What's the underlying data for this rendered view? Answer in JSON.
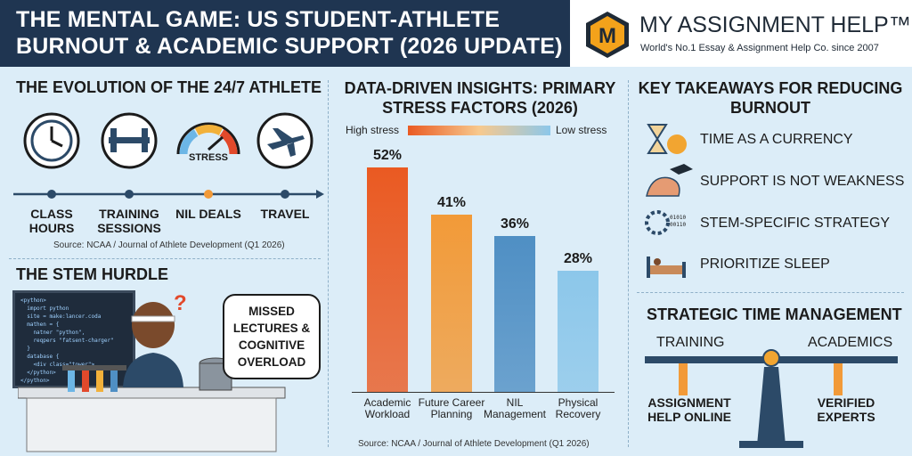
{
  "header": {
    "title_lines": [
      "THE MENTAL GAME: US STUDENT-ATHLETE",
      "BURNOUT & ACADEMIC SUPPORT (2026 UPDATE)"
    ],
    "brand_logo": "M",
    "brand_name": "MY ASSIGNMENT HELP™",
    "brand_tagline": "World's No.1 Essay & Assignment Help Co. since 2007"
  },
  "evolution": {
    "title": "THE EVOLUTION OF THE 24/7 ATHLETE",
    "gauge_label": "STRESS",
    "items": [
      "CLASS HOURS",
      "TRAINING SESSIONS",
      "NIL DEALS",
      "TRAVEL"
    ],
    "source": "Source: NCAA / Journal of Athlete Development (Q1 2026)"
  },
  "stem": {
    "title": "THE STEM HURDLE",
    "bubble": "MISSED LECTURES & COGNITIVE OVERLOAD",
    "code_lines": [
      "<python>",
      "  import python",
      "  site = make:lancer.coda",
      "  mathen = {",
      "    natner \"python\",",
      "    reqpers \"fatsent-charger\"",
      "  }",
      "  database {",
      "    <div class=\"tower\">",
      "  </python>",
      "</python>"
    ]
  },
  "chart_data": {
    "type": "bar",
    "title": "DATA-DRIVEN INSIGHTS: PRIMARY STRESS FACTORS (2026)",
    "legend_labels": [
      "High stress",
      "Low stress"
    ],
    "categories": [
      "Academic Workload",
      "Future Career Planning",
      "NIL Management",
      "Physical Recovery"
    ],
    "values": [
      52,
      41,
      36,
      28
    ],
    "value_labels": [
      "52%",
      "41%",
      "36%",
      "28%"
    ],
    "colors": [
      "#ea5a22",
      "#f29a38",
      "#4f8fc4",
      "#8cc7ea"
    ],
    "source": "Source: NCAA / Journal of Athlete Development (Q1 2026)"
  },
  "takeaways": {
    "title": "KEY TAKEAWAYS FOR REDUCING BURNOUT",
    "items": [
      "TIME AS A CURRENCY",
      "SUPPORT IS NOT WEAKNESS",
      "STEM-SPECIFIC STRATEGY",
      "PRIORITIZE SLEEP"
    ]
  },
  "time_management": {
    "title": "STRATEGIC TIME MANAGEMENT",
    "left": "TRAINING",
    "right": "ACADEMICS",
    "left_label": "ASSIGNMENT HELP ONLINE",
    "right_label": "VERIFIED EXPERTS"
  }
}
